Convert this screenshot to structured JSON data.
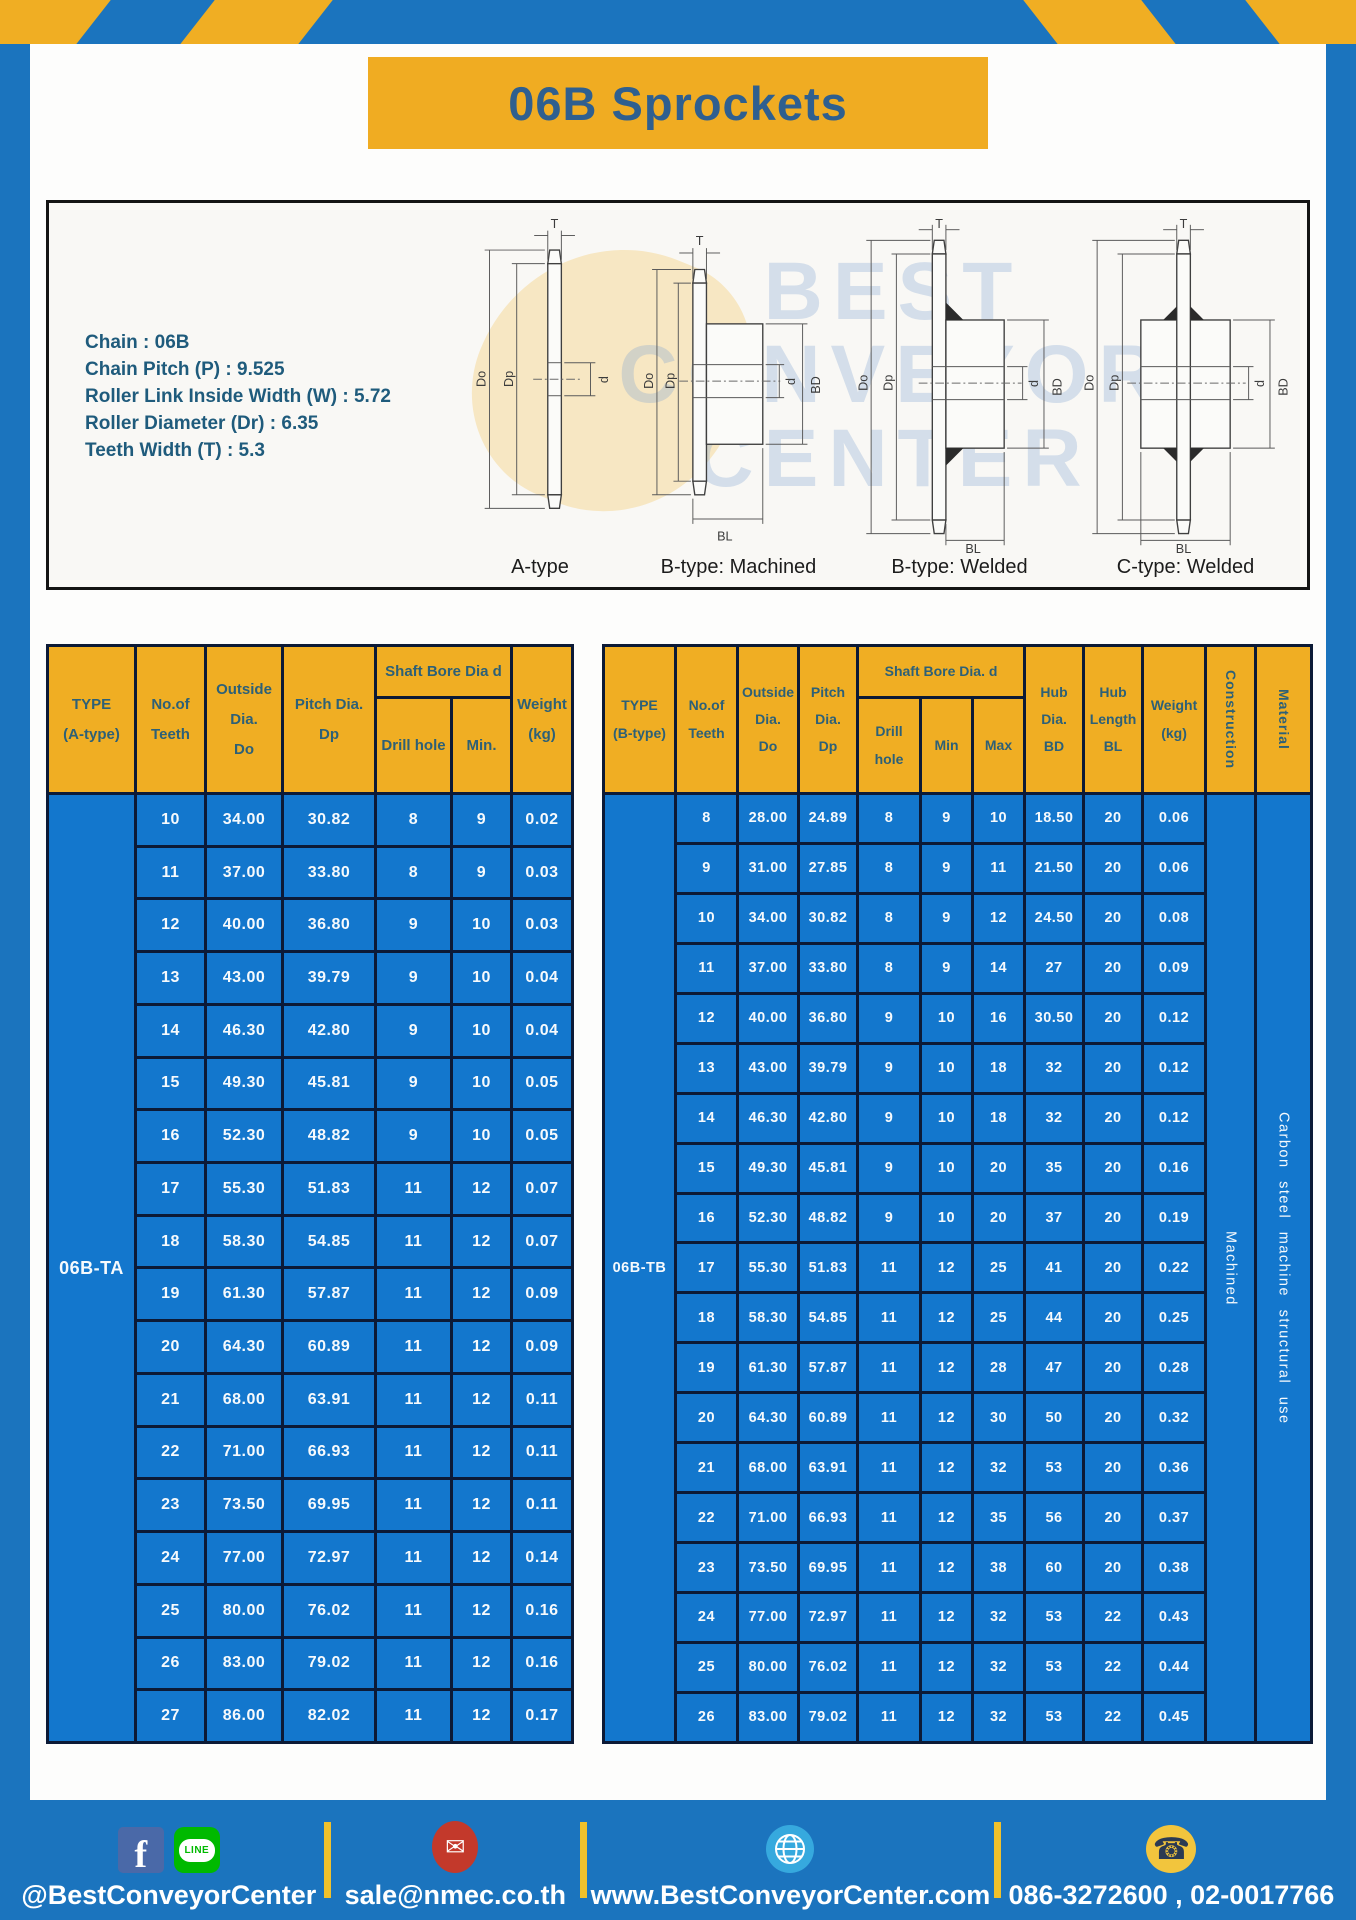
{
  "title": "06B Sprockets",
  "specs": [
    "Chain  : 06B",
    "Chain Pitch (P)  :  9.525",
    "Roller Link Inside Width (W)  :  5.72",
    "Roller Diameter (Dr)  : 6.35",
    "Teeth Width (T)  :  5.3"
  ],
  "watermark": {
    "line1": "BEST",
    "line2": "CONVEYOR",
    "line3": "CENTER"
  },
  "diagrams": {
    "captions": [
      "A-type",
      "B-type: Machined",
      "B-type: Welded",
      "C-type: Welded"
    ],
    "dim_labels": {
      "t": "T",
      "do": "Do",
      "dp": "Dp",
      "d": "d",
      "bd": "BD",
      "bl": "BL"
    }
  },
  "table_a": {
    "headers": {
      "type": "TYPE\n(A-type)",
      "teeth": "No.of\nTeeth",
      "outside": "Outside\nDia.\nDo",
      "pitch": "Pitch Dia.\nDp",
      "shaft": "Shaft Bore Dia d",
      "drill": "Drill hole",
      "min": "Min.",
      "weight": "Weight\n(kg)"
    },
    "type_label": "06B-TA",
    "rows": [
      [
        "10",
        "34.00",
        "30.82",
        "8",
        "9",
        "0.02"
      ],
      [
        "11",
        "37.00",
        "33.80",
        "8",
        "9",
        "0.03"
      ],
      [
        "12",
        "40.00",
        "36.80",
        "9",
        "10",
        "0.03"
      ],
      [
        "13",
        "43.00",
        "39.79",
        "9",
        "10",
        "0.04"
      ],
      [
        "14",
        "46.30",
        "42.80",
        "9",
        "10",
        "0.04"
      ],
      [
        "15",
        "49.30",
        "45.81",
        "9",
        "10",
        "0.05"
      ],
      [
        "16",
        "52.30",
        "48.82",
        "9",
        "10",
        "0.05"
      ],
      [
        "17",
        "55.30",
        "51.83",
        "11",
        "12",
        "0.07"
      ],
      [
        "18",
        "58.30",
        "54.85",
        "11",
        "12",
        "0.07"
      ],
      [
        "19",
        "61.30",
        "57.87",
        "11",
        "12",
        "0.09"
      ],
      [
        "20",
        "64.30",
        "60.89",
        "11",
        "12",
        "0.09"
      ],
      [
        "21",
        "68.00",
        "63.91",
        "11",
        "12",
        "0.11"
      ],
      [
        "22",
        "71.00",
        "66.93",
        "11",
        "12",
        "0.11"
      ],
      [
        "23",
        "73.50",
        "69.95",
        "11",
        "12",
        "0.11"
      ],
      [
        "24",
        "77.00",
        "72.97",
        "11",
        "12",
        "0.14"
      ],
      [
        "25",
        "80.00",
        "76.02",
        "11",
        "12",
        "0.16"
      ],
      [
        "26",
        "83.00",
        "79.02",
        "11",
        "12",
        "0.16"
      ],
      [
        "27",
        "86.00",
        "82.02",
        "11",
        "12",
        "0.17"
      ]
    ]
  },
  "table_b": {
    "headers": {
      "type": "TYPE\n(B-type)",
      "teeth": "No.of\nTeeth",
      "outside": "Outside\nDia.\nDo",
      "pitch": "Pitch\nDia.\nDp",
      "shaft": "Shaft Bore Dia.  d",
      "drill": "Drill hole",
      "min": "Min",
      "max": "Max",
      "hub_dia": "Hub\nDia.\nBD",
      "hub_len": "Hub\nLength\nBL",
      "weight": "Weight\n(kg)",
      "construction": "Construction",
      "material": "Material"
    },
    "type_label": "06B-TB",
    "construction": "Machined",
    "material": "Carbon steel machine structural use",
    "rows": [
      [
        "8",
        "28.00",
        "24.89",
        "8",
        "9",
        "10",
        "18.50",
        "20",
        "0.06"
      ],
      [
        "9",
        "31.00",
        "27.85",
        "8",
        "9",
        "11",
        "21.50",
        "20",
        "0.06"
      ],
      [
        "10",
        "34.00",
        "30.82",
        "8",
        "9",
        "12",
        "24.50",
        "20",
        "0.08"
      ],
      [
        "11",
        "37.00",
        "33.80",
        "8",
        "9",
        "14",
        "27",
        "20",
        "0.09"
      ],
      [
        "12",
        "40.00",
        "36.80",
        "9",
        "10",
        "16",
        "30.50",
        "20",
        "0.12"
      ],
      [
        "13",
        "43.00",
        "39.79",
        "9",
        "10",
        "18",
        "32",
        "20",
        "0.12"
      ],
      [
        "14",
        "46.30",
        "42.80",
        "9",
        "10",
        "18",
        "32",
        "20",
        "0.12"
      ],
      [
        "15",
        "49.30",
        "45.81",
        "9",
        "10",
        "20",
        "35",
        "20",
        "0.16"
      ],
      [
        "16",
        "52.30",
        "48.82",
        "9",
        "10",
        "20",
        "37",
        "20",
        "0.19"
      ],
      [
        "17",
        "55.30",
        "51.83",
        "11",
        "12",
        "25",
        "41",
        "20",
        "0.22"
      ],
      [
        "18",
        "58.30",
        "54.85",
        "11",
        "12",
        "25",
        "44",
        "20",
        "0.25"
      ],
      [
        "19",
        "61.30",
        "57.87",
        "11",
        "12",
        "28",
        "47",
        "20",
        "0.28"
      ],
      [
        "20",
        "64.30",
        "60.89",
        "11",
        "12",
        "30",
        "50",
        "20",
        "0.32"
      ],
      [
        "21",
        "68.00",
        "63.91",
        "11",
        "12",
        "32",
        "53",
        "20",
        "0.36"
      ],
      [
        "22",
        "71.00",
        "66.93",
        "11",
        "12",
        "35",
        "56",
        "20",
        "0.37"
      ],
      [
        "23",
        "73.50",
        "69.95",
        "11",
        "12",
        "38",
        "60",
        "20",
        "0.38"
      ],
      [
        "24",
        "77.00",
        "72.97",
        "11",
        "12",
        "32",
        "53",
        "22",
        "0.43"
      ],
      [
        "25",
        "80.00",
        "76.02",
        "11",
        "12",
        "32",
        "53",
        "22",
        "0.44"
      ],
      [
        "26",
        "83.00",
        "79.02",
        "11",
        "12",
        "32",
        "53",
        "22",
        "0.45"
      ]
    ]
  },
  "footer": {
    "facebook_label": "f",
    "line_label": "LINE",
    "mail_glyph": "✉",
    "phone_glyph": "☎",
    "social_handle": "@BestConveyorCenter",
    "email": "sale@nmec.co.th",
    "website": "www.BestConveyorCenter.com",
    "phones": "086-3272600 , 02-0017766"
  },
  "colors": {
    "frame_blue": "#1B74BE",
    "table_blue": "#1377CD",
    "accent_yellow": "#F0AE23",
    "title_text_blue": "#2F5F8F",
    "header_text_teal": "#2D6077",
    "spec_text_teal": "#1F5B7C",
    "border_navy": "#0C1A36",
    "facebook_blue": "#4A69A8",
    "line_green": "#00B900",
    "email_red": "#C3392B",
    "globe_blue": "#36A9DE",
    "phone_yellow": "#F2C53D"
  }
}
